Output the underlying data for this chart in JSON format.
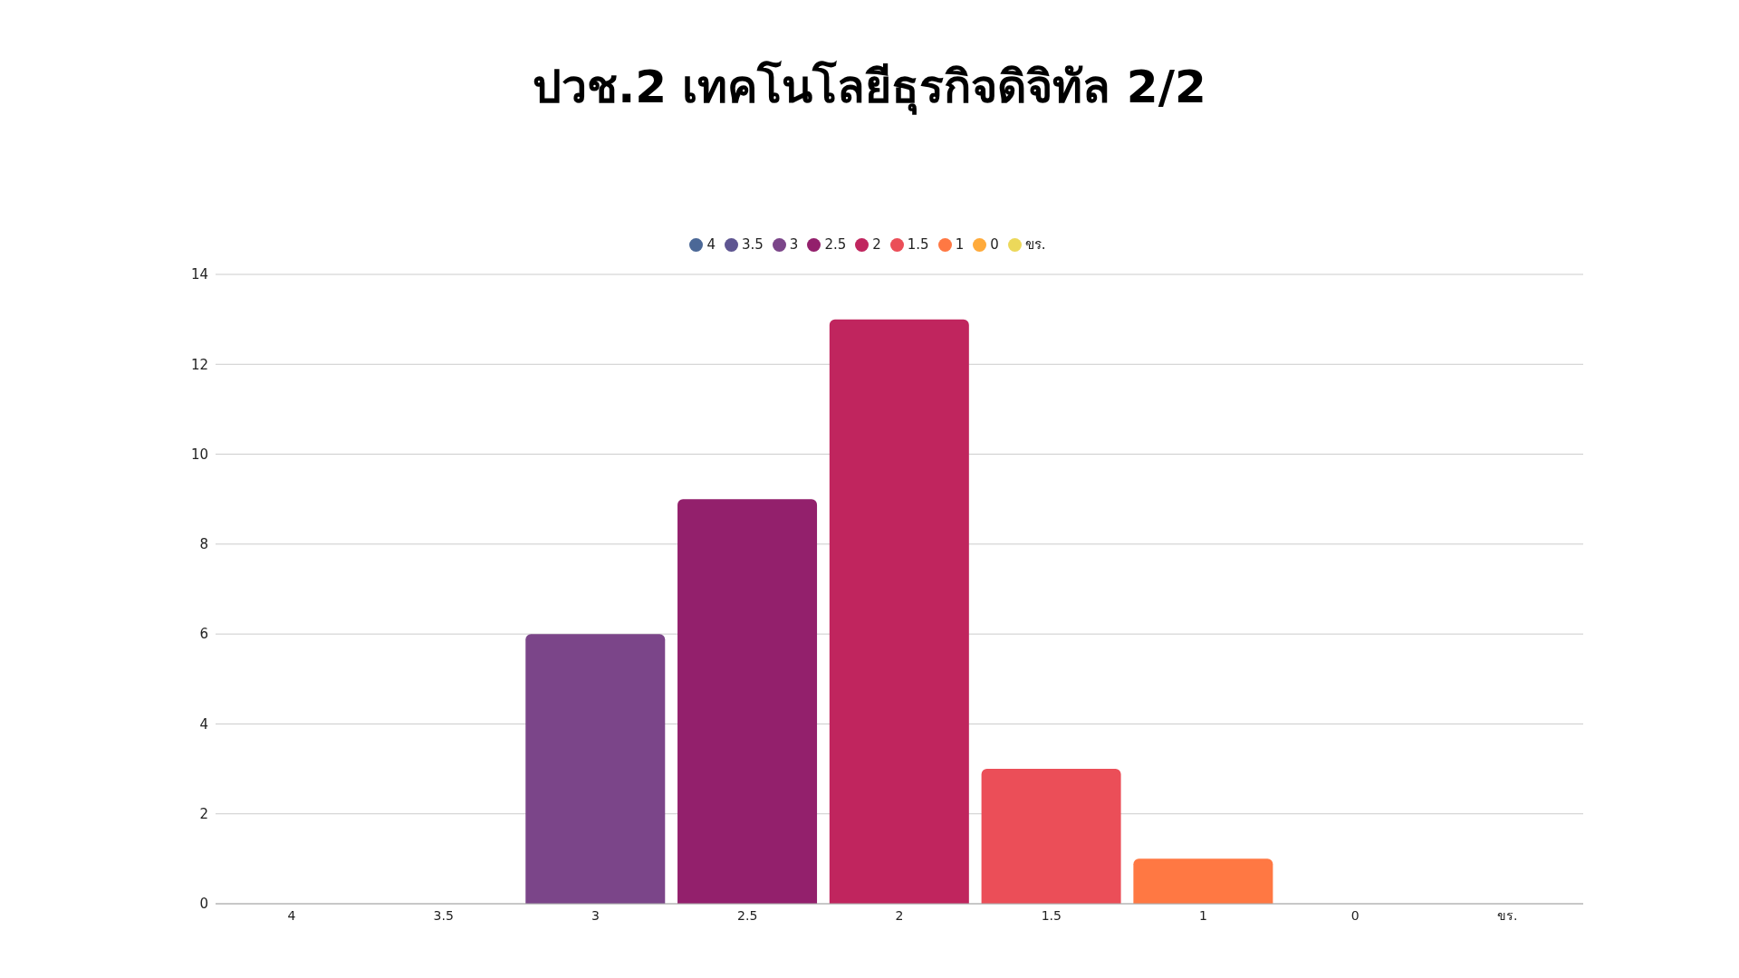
{
  "chart_data": {
    "type": "bar",
    "title": "ปวช.2 เทคโนโลยีธุรกิจดิจิทัล 2/2",
    "categories": [
      "4",
      "3.5",
      "3",
      "2.5",
      "2",
      "1.5",
      "1",
      "0",
      "ขร."
    ],
    "stacked": true,
    "series": [
      {
        "name": "4",
        "color": "#4b6897",
        "values": [
          0,
          null,
          null,
          null,
          null,
          null,
          null,
          null,
          null
        ]
      },
      {
        "name": "3.5",
        "color": "#5e5591",
        "values": [
          null,
          0,
          null,
          null,
          null,
          null,
          null,
          null,
          null
        ]
      },
      {
        "name": "3",
        "color": "#7b4589",
        "values": [
          null,
          null,
          6,
          null,
          null,
          null,
          null,
          null,
          null
        ]
      },
      {
        "name": "2.5",
        "color": "#93206c",
        "values": [
          null,
          null,
          null,
          9,
          null,
          null,
          null,
          null,
          null
        ]
      },
      {
        "name": "2",
        "color": "#c0255e",
        "values": [
          null,
          null,
          null,
          null,
          13,
          null,
          null,
          null,
          null
        ]
      },
      {
        "name": "1.5",
        "color": "#eb4e58",
        "values": [
          null,
          null,
          null,
          null,
          null,
          3,
          null,
          null,
          null
        ]
      },
      {
        "name": "1",
        "color": "#ff7843",
        "values": [
          null,
          null,
          null,
          null,
          null,
          null,
          1,
          null,
          null
        ]
      },
      {
        "name": "0",
        "color": "#ffaa3a",
        "values": [
          null,
          null,
          null,
          null,
          null,
          null,
          null,
          0,
          null
        ]
      },
      {
        "name": "ขร.",
        "color": "#ecd85a",
        "values": [
          null,
          null,
          null,
          null,
          null,
          null,
          null,
          null,
          0
        ]
      }
    ],
    "ylim": [
      0,
      14
    ],
    "yticks": [
      0,
      2,
      4,
      6,
      8,
      10,
      12,
      14
    ],
    "grid": "y",
    "legend": "top"
  }
}
